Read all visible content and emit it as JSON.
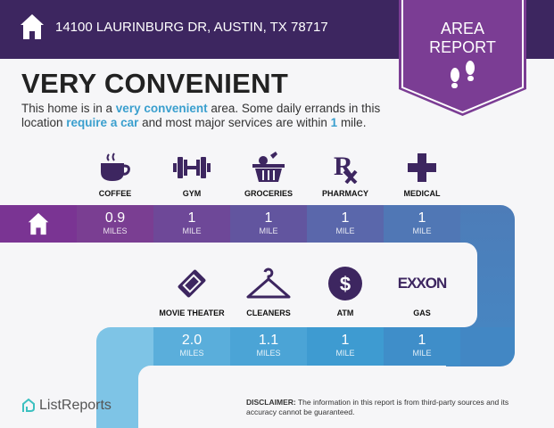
{
  "header": {
    "address": "14100 LAURINBURG DR, AUSTIN, TX 78717"
  },
  "badge": {
    "line1": "AREA",
    "line2": "REPORT",
    "icon": "footprints-icon"
  },
  "title": "VERY CONVENIENT",
  "description": {
    "p1": "This home is in a ",
    "h1": "very convenient",
    "p2": " area. Some daily errands in this location ",
    "h2": "require a car",
    "p3": " and most major services are within ",
    "h3": "1",
    "p4": " mile."
  },
  "row1": [
    {
      "label": "COFFEE",
      "icon": "coffee-icon",
      "value": "0.9",
      "unit": "MILES",
      "color": "#7a3e92"
    },
    {
      "label": "GYM",
      "icon": "dumbbell-icon",
      "value": "1",
      "unit": "MILE",
      "color": "#6e4898"
    },
    {
      "label": "GROCERIES",
      "icon": "basket-icon",
      "value": "1",
      "unit": "MILE",
      "color": "#62559f"
    },
    {
      "label": "PHARMACY",
      "icon": "rx-icon",
      "value": "1",
      "unit": "MILE",
      "color": "#5a67ab"
    },
    {
      "label": "MEDICAL",
      "icon": "cross-icon",
      "value": "1",
      "unit": "MILE",
      "color": "#5077b5"
    }
  ],
  "row2": [
    {
      "label": "MOVIE THEATER",
      "icon": "ticket-icon",
      "value": "2.0",
      "unit": "MILES",
      "color": "#5aaedb"
    },
    {
      "label": "CLEANERS",
      "icon": "hanger-icon",
      "value": "1.1",
      "unit": "MILES",
      "color": "#4ba4d6"
    },
    {
      "label": "ATM",
      "icon": "dollar-icon",
      "value": "1",
      "unit": "MILE",
      "color": "#3e9bd1"
    },
    {
      "label": "GAS",
      "icon": "exxon-logo",
      "logo_text": "EXXON",
      "value": "1",
      "unit": "MILE",
      "color": "#3f8ec9"
    }
  ],
  "footer": {
    "logo": "ListReports",
    "disclaimer_label": "DISCLAIMER:",
    "disclaimer": " The information in this report is from third-party sources and its accuracy cannot be guaranteed."
  }
}
